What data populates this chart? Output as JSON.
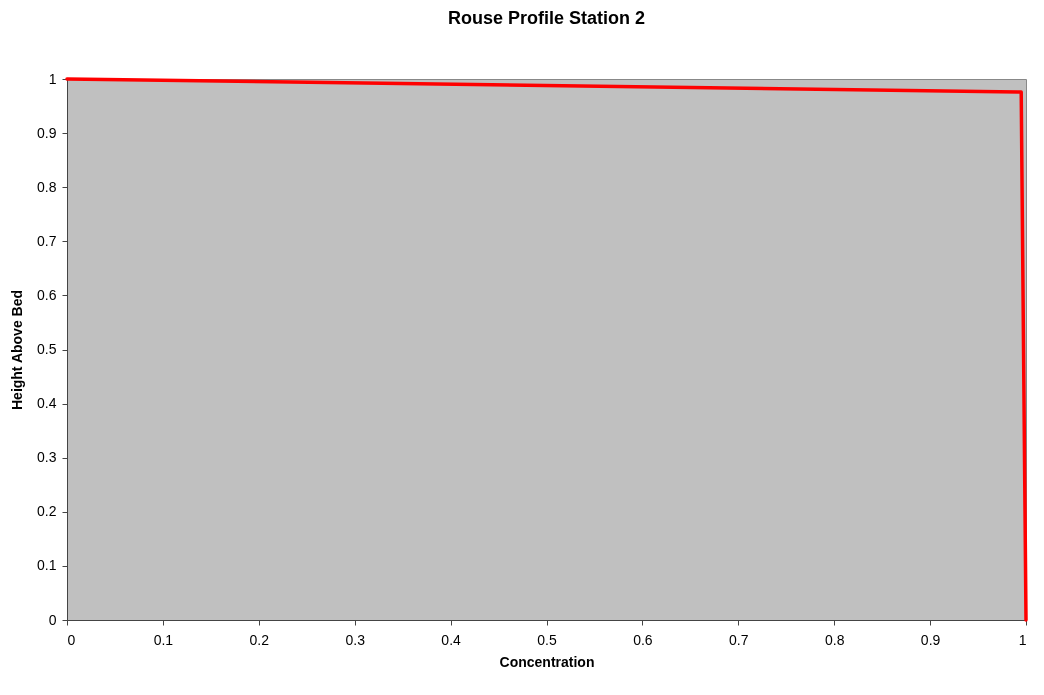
{
  "chart_data": {
    "type": "line",
    "title": "Rouse Profile Station 2",
    "xlabel": "Concentration",
    "ylabel": "Height Above Bed",
    "x": [
      0,
      0.995,
      1
    ],
    "series": [
      {
        "color": "#ff0000",
        "values": [
          1,
          0.976,
          0
        ]
      }
    ],
    "xlim": [
      0,
      1
    ],
    "xticks": [
      0,
      0.1,
      0.2,
      0.3,
      0.4,
      0.5,
      0.6,
      0.7,
      0.8,
      0.9,
      1
    ],
    "ylim": [
      0,
      1
    ],
    "yticks": [
      0,
      0.1,
      0.2,
      0.3,
      0.4,
      0.5,
      0.6,
      0.7,
      0.8,
      0.9,
      1
    ],
    "grid": false,
    "marker": "none",
    "line_style": "solid"
  }
}
